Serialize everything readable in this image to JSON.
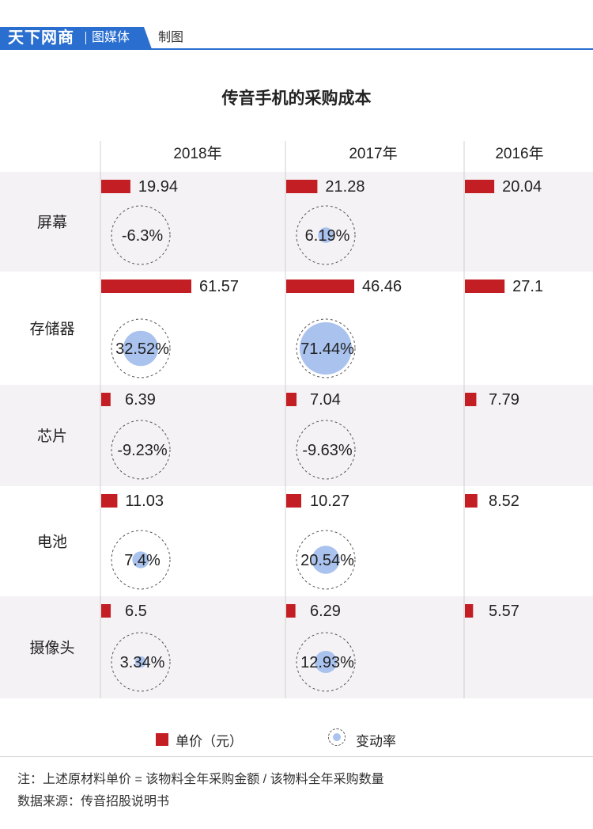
{
  "brand": {
    "main": "天下网商",
    "sub": "图媒体",
    "made": "制图",
    "blue": "#2a6fd0"
  },
  "chart_data": {
    "type": "table",
    "title": "传音手机的采购成本",
    "years": [
      "2018年",
      "2017年",
      "2016年"
    ],
    "categories": [
      "屏幕",
      "存储器",
      "芯片",
      "电池",
      "摄像头"
    ],
    "unit_price": {
      "2018年": [
        19.94,
        61.57,
        6.39,
        11.03,
        6.5
      ],
      "2017年": [
        21.28,
        46.46,
        7.04,
        10.27,
        6.29
      ],
      "2016年": [
        20.04,
        27.1,
        7.79,
        8.52,
        5.57
      ]
    },
    "change_rate": {
      "2018年": [
        "-6.3%",
        "32.52%",
        "-9.23%",
        "7.4%",
        "3.34%"
      ],
      "2017年": [
        "6.19%",
        "71.44%",
        "-9.63%",
        "20.54%",
        "12.93%"
      ]
    },
    "change_rate_values": {
      "2018年": [
        -6.3,
        32.52,
        -9.23,
        7.4,
        3.34
      ],
      "2017年": [
        6.19,
        71.44,
        -9.63,
        20.54,
        12.93
      ]
    },
    "legend": [
      "单价（元）",
      "变动率"
    ],
    "colors": {
      "bar": "#c41e25",
      "rate_dot": "#a9c2ee",
      "row_alt": "#f4f2f5"
    }
  },
  "legend": {
    "price": "单价（元）",
    "rate": "变动率"
  },
  "footer": {
    "note": "注：上述原材料单价 = 该物料全年采购金额 / 该物料全年采购数量",
    "source": "数据来源：传音招股说明书"
  }
}
